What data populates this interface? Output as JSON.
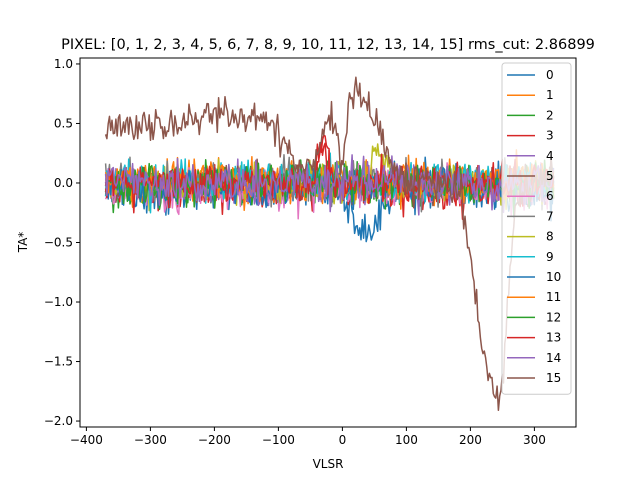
{
  "chart_data": {
    "type": "line",
    "title": "PIXEL: [0, 1, 2, 3, 4, 5, 6, 7, 8, 9, 10, 11, 12, 13, 14, 15]   rms_cut: 2.86899",
    "xlabel": "VLSR",
    "ylabel": "TA*",
    "xlim": [
      -410,
      365
    ],
    "ylim": [
      -2.05,
      1.05
    ],
    "x_ticks": [
      -400,
      -300,
      -200,
      -100,
      0,
      100,
      200,
      300
    ],
    "x_tick_labels": [
      "−400",
      "−300",
      "−200",
      "−100",
      "0",
      "100",
      "200",
      "300"
    ],
    "y_ticks": [
      -2.0,
      -1.5,
      -1.0,
      -0.5,
      0.0,
      0.5,
      1.0
    ],
    "y_tick_labels": [
      "−2.0",
      "−1.5",
      "−1.0",
      "−0.5",
      "0.0",
      "0.5",
      "1.0"
    ],
    "grid": false,
    "legend_position": "top-right",
    "x_range": [
      -370,
      330
    ],
    "n_points": 350,
    "series": [
      {
        "name": "0",
        "color": "#1f77b4",
        "baseline": -0.07,
        "noise": 0.08,
        "features": [
          {
            "center": 38,
            "width": 20,
            "amp": -0.35
          }
        ]
      },
      {
        "name": "1",
        "color": "#ff7f0e",
        "baseline": 0.02,
        "noise": 0.08,
        "features": []
      },
      {
        "name": "2",
        "color": "#2ca02c",
        "baseline": -0.02,
        "noise": 0.08,
        "features": [
          {
            "center": -30,
            "width": 12,
            "amp": 0.12
          }
        ]
      },
      {
        "name": "3",
        "color": "#d62728",
        "baseline": -0.05,
        "noise": 0.08,
        "features": [
          {
            "center": -28,
            "width": 8,
            "amp": 0.45
          }
        ]
      },
      {
        "name": "4",
        "color": "#9467bd",
        "baseline": -0.03,
        "noise": 0.08,
        "features": []
      },
      {
        "name": "5",
        "color": "#8c564b",
        "baseline": 0.0,
        "noise": 0.07,
        "features": []
      },
      {
        "name": "6",
        "color": "#e377c2",
        "baseline": -0.05,
        "noise": 0.08,
        "features": []
      },
      {
        "name": "7",
        "color": "#7f7f7f",
        "baseline": 0.0,
        "noise": 0.08,
        "features": []
      },
      {
        "name": "8",
        "color": "#bcbd22",
        "baseline": 0.0,
        "noise": 0.08,
        "features": [
          {
            "center": 55,
            "width": 10,
            "amp": 0.22
          }
        ]
      },
      {
        "name": "9",
        "color": "#17becf",
        "baseline": 0.02,
        "noise": 0.08,
        "features": []
      },
      {
        "name": "10",
        "color": "#1f77b4",
        "baseline": -0.02,
        "noise": 0.08,
        "features": []
      },
      {
        "name": "11",
        "color": "#ff7f0e",
        "baseline": 0.0,
        "noise": 0.08,
        "features": []
      },
      {
        "name": "12",
        "color": "#2ca02c",
        "baseline": 0.0,
        "noise": 0.08,
        "features": []
      },
      {
        "name": "13",
        "color": "#d62728",
        "baseline": 0.0,
        "noise": 0.08,
        "features": [
          {
            "center": -30,
            "width": 8,
            "amp": 0.3
          }
        ]
      },
      {
        "name": "14",
        "color": "#9467bd",
        "baseline": 0.0,
        "noise": 0.08,
        "features": []
      },
      {
        "name": "15",
        "color": "#8c564b",
        "baseline": 0.0,
        "noise": 0.07,
        "shape": [
          [
            -370,
            0.4
          ],
          [
            -330,
            0.5
          ],
          [
            -300,
            0.45
          ],
          [
            -250,
            0.52
          ],
          [
            -200,
            0.57
          ],
          [
            -150,
            0.55
          ],
          [
            -120,
            0.5
          ],
          [
            -95,
            0.38
          ],
          [
            -80,
            0.25
          ],
          [
            -60,
            0.12
          ],
          [
            -40,
            0.18
          ],
          [
            -25,
            0.52
          ],
          [
            -15,
            0.55
          ],
          [
            -5,
            0.3
          ],
          [
            0,
            0.1
          ],
          [
            10,
            0.7
          ],
          [
            25,
            0.78
          ],
          [
            45,
            0.65
          ],
          [
            55,
            0.52
          ],
          [
            68,
            0.22
          ],
          [
            90,
            0.05
          ],
          [
            150,
            0.0
          ],
          [
            185,
            -0.1
          ],
          [
            195,
            -0.45
          ],
          [
            205,
            -0.8
          ],
          [
            215,
            -1.2
          ],
          [
            225,
            -1.55
          ],
          [
            235,
            -1.75
          ],
          [
            245,
            -1.82
          ],
          [
            252,
            -1.6
          ],
          [
            260,
            -0.8
          ],
          [
            270,
            -0.2
          ],
          [
            300,
            0.02
          ],
          [
            330,
            0.05
          ]
        ]
      }
    ]
  }
}
